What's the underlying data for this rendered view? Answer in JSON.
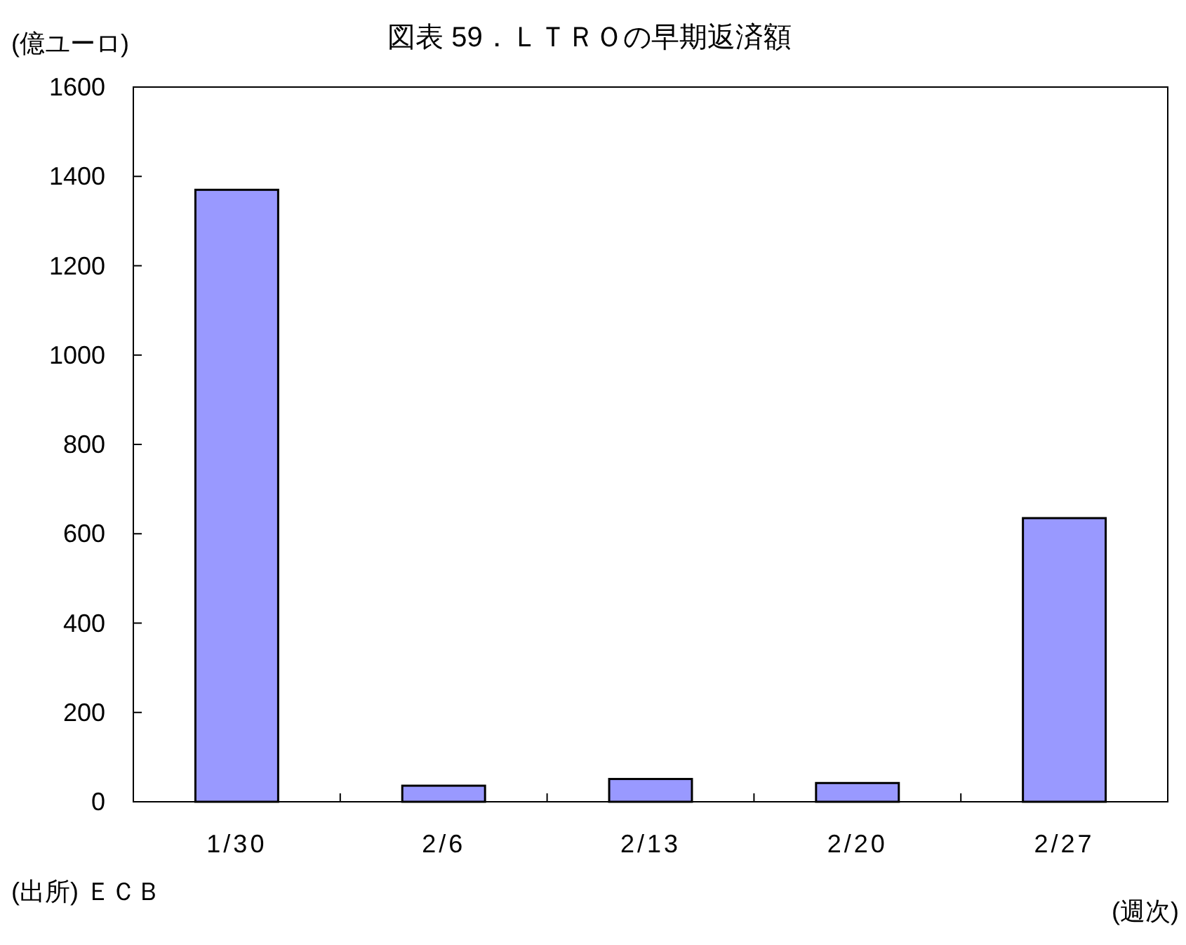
{
  "chart_data": {
    "type": "bar",
    "title": "図表 59．ＬＴＲＯの早期返済額",
    "ylabel": "(億ユーロ)",
    "xlabel": "(週次)",
    "annotations": [
      "(出所) ＥＣＢ"
    ],
    "categories": [
      "1/30",
      "2/6",
      "2/13",
      "2/20",
      "2/27"
    ],
    "values": [
      1370,
      36,
      51,
      42,
      635
    ],
    "color": "#9999ff",
    "ylim": [
      0,
      1600
    ],
    "yticks": [
      0,
      200,
      400,
      600,
      800,
      1000,
      1200,
      1400,
      1600
    ]
  }
}
